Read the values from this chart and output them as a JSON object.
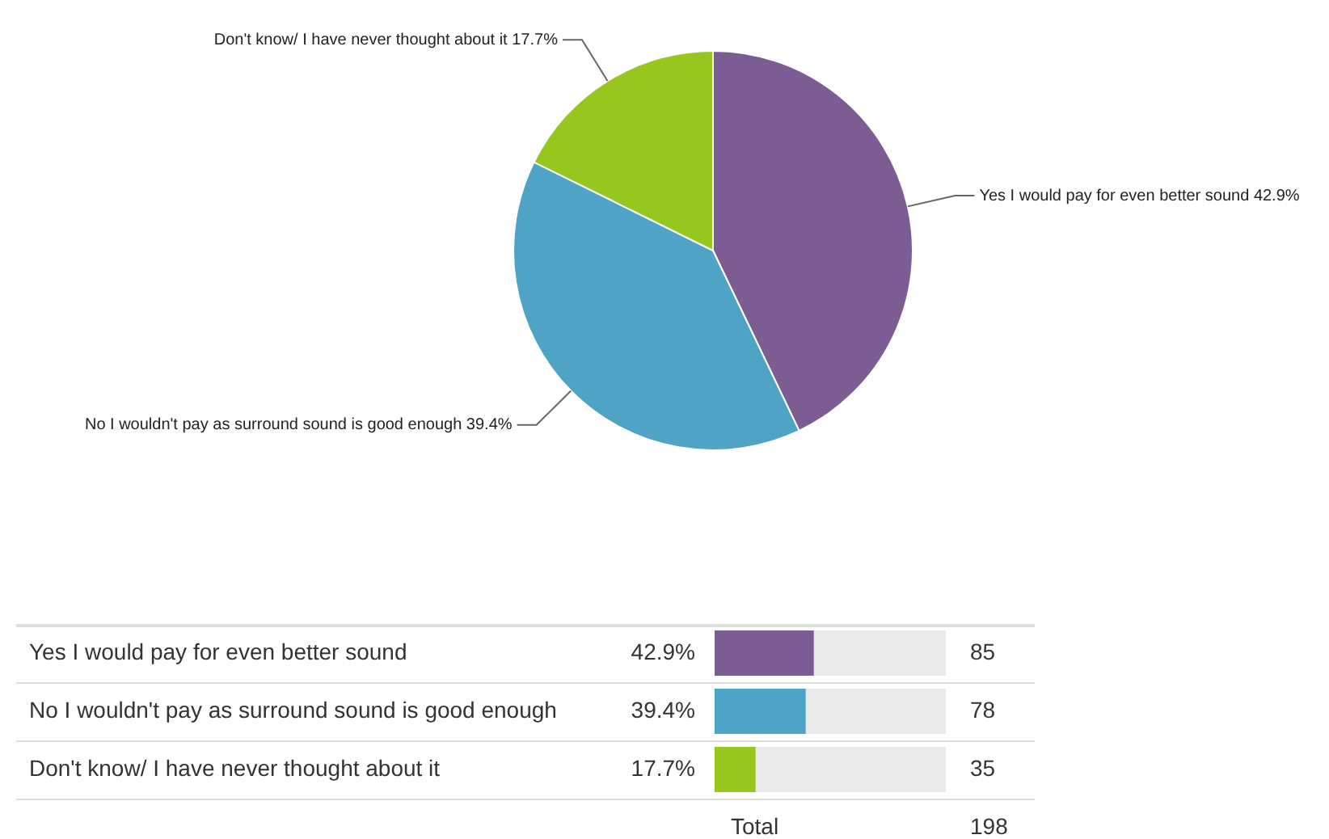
{
  "chart_data": [
    {
      "type": "pie",
      "categories": [
        "Yes I would pay for even better sound",
        "No I wouldn't pay as surround sound is good enough",
        "Don't know/ I have never thought about it"
      ],
      "values": [
        42.9,
        39.4,
        17.7
      ],
      "value_labels": [
        "42.9%",
        "39.4%",
        "17.7%"
      ],
      "colors": [
        "#7b5c93",
        "#4fa3c4",
        "#97c71f"
      ]
    },
    {
      "type": "bar",
      "orientation": "horizontal",
      "categories": [
        "Yes I would pay for even better sound",
        "No I wouldn't pay as surround sound is good enough",
        "Don't know/ I have never thought about it"
      ],
      "values": [
        42.9,
        39.4,
        17.7
      ],
      "value_labels": [
        "42.9%",
        "39.4%",
        "17.7%"
      ],
      "colors": [
        "#7b5c93",
        "#4fa3c4",
        "#97c71f"
      ],
      "xlim": [
        0,
        100
      ],
      "tick_labels": false,
      "annotations": [
        "85",
        "78",
        "35",
        "Total",
        "198"
      ]
    }
  ]
}
